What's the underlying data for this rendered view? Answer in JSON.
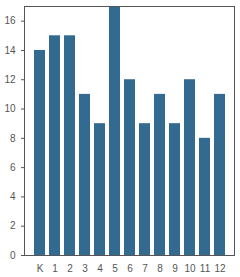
{
  "chart_data": {
    "type": "bar",
    "categories": [
      "K",
      "1",
      "2",
      "3",
      "4",
      "5",
      "6",
      "7",
      "8",
      "9",
      "10",
      "11",
      "12"
    ],
    "values": [
      14,
      15,
      15,
      11,
      9,
      17,
      12,
      9,
      11,
      9,
      12,
      8,
      11
    ],
    "color": "#336a90",
    "ylim": [
      0,
      17
    ],
    "yticks": [
      0,
      2,
      4,
      6,
      8,
      10,
      12,
      14,
      16
    ],
    "grid": false
  }
}
